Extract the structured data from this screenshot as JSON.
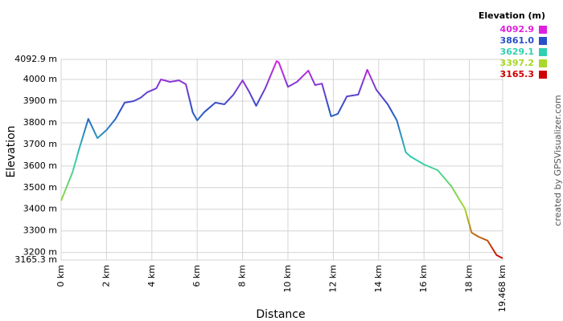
{
  "chart_data": {
    "type": "line",
    "x_label": "Distance",
    "y_label": "Elevation",
    "legend_title": "Elevation (m)",
    "credit": "created by GPSVisualizer.com",
    "color_scale": [
      {
        "value": 4092.9,
        "label": "4092.9",
        "color": "#e020e0"
      },
      {
        "value": 3861,
        "label": "3861.0",
        "color": "#2850c8"
      },
      {
        "value": 3629.1,
        "label": "3629.1",
        "color": "#30d0b0"
      },
      {
        "value": 3397.2,
        "label": "3397.2",
        "color": "#a8d828"
      },
      {
        "value": 3165.3,
        "label": "3165.3",
        "color": "#d00000"
      }
    ],
    "x": [
      0,
      0.5,
      0.8,
      1.2,
      1.6,
      2.0,
      2.4,
      2.8,
      3.2,
      3.5,
      3.8,
      4.2,
      4.4,
      4.8,
      5.2,
      5.5,
      5.8,
      6.0,
      6.3,
      6.8,
      7.2,
      7.6,
      8.0,
      8.3,
      8.6,
      9.0,
      9.5,
      9.6,
      10.0,
      10.4,
      10.9,
      11.2,
      11.5,
      11.9,
      12.2,
      12.6,
      13.1,
      13.5,
      13.9,
      14.4,
      14.8,
      15.2,
      15.4,
      16.0,
      16.6,
      17.2,
      17.8,
      18.1,
      18.4,
      18.8,
      19.2,
      19.468
    ],
    "values": [
      3440,
      3570,
      3681,
      3818,
      3729,
      3766,
      3818,
      3893,
      3900,
      3915,
      3941,
      3959,
      4000,
      3989,
      3996,
      3978,
      3848,
      3811,
      3848,
      3893,
      3885,
      3930,
      3996,
      3941,
      3878,
      3959,
      4085,
      4078,
      3966,
      3989,
      4041,
      3974,
      3981,
      3830,
      3841,
      3922,
      3930,
      4045,
      3952,
      3885,
      3811,
      3663,
      3644,
      3607,
      3581,
      3507,
      3403,
      3292,
      3273,
      3255,
      3188,
      3173
    ],
    "xlim": [
      0,
      19.468
    ],
    "ylim": [
      3165.3,
      4092.9
    ],
    "xticks": [
      {
        "value": 0,
        "label": "0 km"
      },
      {
        "value": 2,
        "label": "2 km"
      },
      {
        "value": 4,
        "label": "4 km"
      },
      {
        "value": 6,
        "label": "6 km"
      },
      {
        "value": 8,
        "label": "8 km"
      },
      {
        "value": 10,
        "label": "10 km"
      },
      {
        "value": 12,
        "label": "12 km"
      },
      {
        "value": 14,
        "label": "14 km"
      },
      {
        "value": 16,
        "label": "16 km"
      },
      {
        "value": 18,
        "label": "18 km"
      },
      {
        "value": 19.468,
        "label": "19.468 km"
      }
    ],
    "yticks": [
      {
        "value": 3165.3,
        "label": "3165.3 m"
      },
      {
        "value": 3200,
        "label": "3200 m"
      },
      {
        "value": 3300,
        "label": "3300 m"
      },
      {
        "value": 3400,
        "label": "3400 m"
      },
      {
        "value": 3500,
        "label": "3500 m"
      },
      {
        "value": 3600,
        "label": "3600 m"
      },
      {
        "value": 3700,
        "label": "3700 m"
      },
      {
        "value": 3800,
        "label": "3800 m"
      },
      {
        "value": 3900,
        "label": "3900 m"
      },
      {
        "value": 4000,
        "label": "4000 m"
      },
      {
        "value": 4092.9,
        "label": "4092.9 m"
      }
    ],
    "grid": true
  }
}
